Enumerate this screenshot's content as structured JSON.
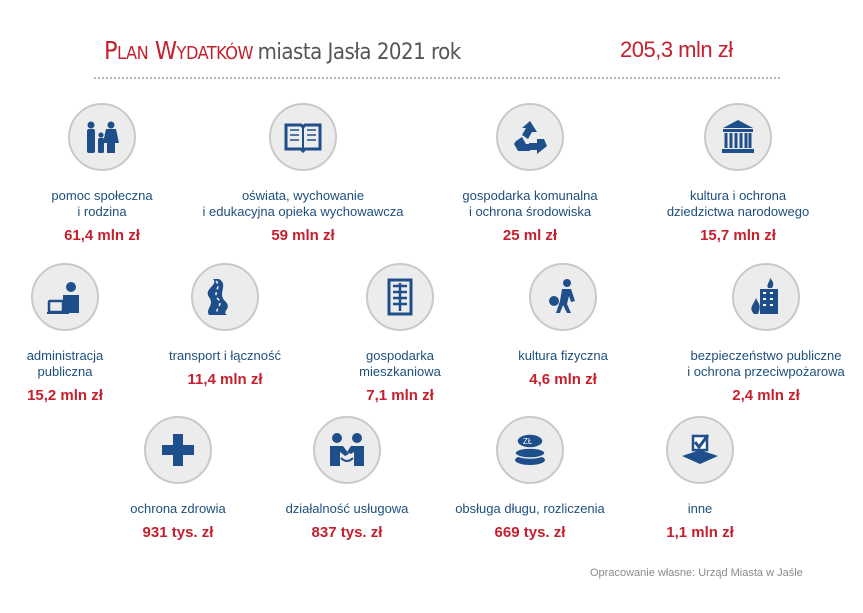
{
  "header": {
    "title_red": "Plan Wydatków",
    "title_gray": "miasta Jasła 2021 rok",
    "total": "205,3 mln zł"
  },
  "colors": {
    "accent": "#c4202e",
    "label": "#1d4f7d",
    "icon": "#1f4f8b",
    "circle": "#ececec"
  },
  "items": [
    {
      "label": "pomoc społeczna\ni rodzina",
      "value": "61,4 mln zł",
      "icon": "family-icon"
    },
    {
      "label": "oświata, wychowanie\ni edukacyjna opieka wychowawcza",
      "value": "59 mln zł",
      "icon": "book-icon"
    },
    {
      "label": "gospodarka komunalna\ni ochrona środowiska",
      "value": "25 ml zł",
      "icon": "recycle-icon"
    },
    {
      "label": "kultura i ochrona\ndziedzictwa narodowego",
      "value": "15,7 mln zł",
      "icon": "museum-icon"
    },
    {
      "label": "administracja\npubliczna",
      "value": "15,2 mln zł",
      "icon": "office-worker-icon"
    },
    {
      "label": "transport i łączność",
      "value": "11,4 mln zł",
      "icon": "road-icon"
    },
    {
      "label": "gospodarka\nmieszkaniowa",
      "value": "7,1 mln zł",
      "icon": "building-icon"
    },
    {
      "label": "kultura fizyczna",
      "value": "4,6 mln zł",
      "icon": "athlete-icon"
    },
    {
      "label": "bezpieczeństwo publiczne\ni ochrona przeciwpożarowa",
      "value": "2,4 mln zł",
      "icon": "burning-building-icon"
    },
    {
      "label": "ochrona zdrowia",
      "value": "931 tys. zł",
      "icon": "medical-cross-icon"
    },
    {
      "label": "działalność usługowa",
      "value": "837 tys. zł",
      "icon": "handshake-icon"
    },
    {
      "label": "obsługa długu, rozliczenia",
      "value": "669 tys. zł",
      "icon": "coins-icon"
    },
    {
      "label": "inne",
      "value": "1,1 mln zł",
      "icon": "checkbox-icon"
    }
  ],
  "footer": "Opracowanie własne: Urząd Miasta w Jaśle"
}
